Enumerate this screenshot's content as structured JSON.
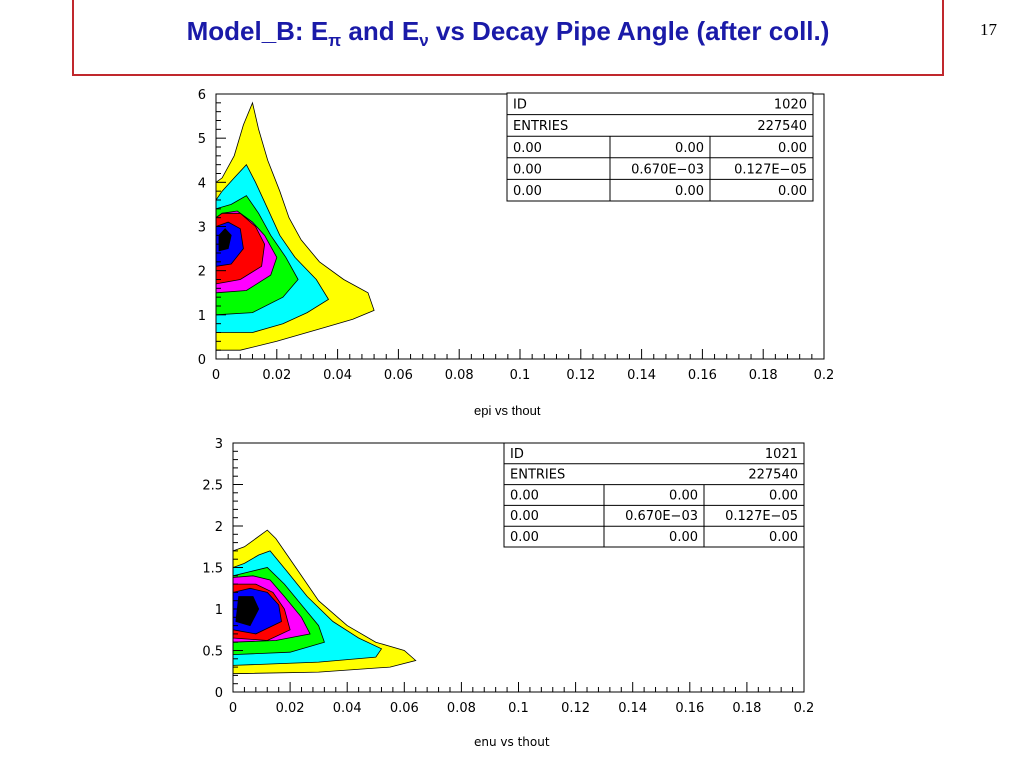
{
  "slide": {
    "title_main": "Model_B:  E",
    "title_sub1": "π",
    "title_mid": " and E",
    "title_sub2": "ν",
    "title_end": " vs Decay Pipe Angle (after coll.)",
    "page_number": "17"
  },
  "palette": {
    "yellow": "#ffff00",
    "cyan": "#00ffff",
    "green": "#00ff00",
    "magenta": "#ff00ff",
    "red": "#ff0000",
    "blue": "#0000ff",
    "black": "#000000"
  },
  "chart_data": [
    {
      "type": "heatmap",
      "title": "epi vs thout",
      "xlabel": "",
      "ylabel": "",
      "xlim": [
        0,
        0.2
      ],
      "ylim": [
        0,
        6
      ],
      "xticks": [
        "0",
        "0.02",
        "0.04",
        "0.06",
        "0.08",
        "0.1",
        "0.12",
        "0.14",
        "0.16",
        "0.18",
        "0.2"
      ],
      "yticks": [
        "0",
        "1",
        "2",
        "3",
        "4",
        "5",
        "6"
      ],
      "stats": [
        [
          "ID",
          "",
          "1020"
        ],
        [
          "ENTRIES",
          "",
          "227540"
        ],
        [
          "0.00",
          "0.00",
          "0.00"
        ],
        [
          "0.00",
          "0.670E−03",
          "0.127E−05"
        ],
        [
          "0.00",
          "0.00",
          "0.00"
        ]
      ],
      "contour_levels": [
        {
          "level": "yellow",
          "outline": [
            [
              0,
              0.2
            ],
            [
              0.008,
              0.2
            ],
            [
              0.02,
              0.4
            ],
            [
              0.035,
              0.7
            ],
            [
              0.045,
              0.9
            ],
            [
              0.052,
              1.1
            ],
            [
              0.05,
              1.5
            ],
            [
              0.042,
              1.8
            ],
            [
              0.034,
              2.2
            ],
            [
              0.028,
              2.7
            ],
            [
              0.024,
              3.2
            ],
            [
              0.021,
              3.8
            ],
            [
              0.017,
              4.5
            ],
            [
              0.014,
              5.2
            ],
            [
              0.012,
              5.8
            ],
            [
              0.009,
              5.3
            ],
            [
              0.006,
              4.6
            ],
            [
              0.002,
              4.1
            ],
            [
              0,
              4.0
            ]
          ]
        },
        {
          "level": "cyan",
          "outline": [
            [
              0,
              0.6
            ],
            [
              0.012,
              0.6
            ],
            [
              0.022,
              0.8
            ],
            [
              0.03,
              1.05
            ],
            [
              0.037,
              1.35
            ],
            [
              0.033,
              1.8
            ],
            [
              0.026,
              2.3
            ],
            [
              0.021,
              2.8
            ],
            [
              0.017,
              3.4
            ],
            [
              0.013,
              4.0
            ],
            [
              0.01,
              4.4
            ],
            [
              0.006,
              4.1
            ],
            [
              0.002,
              3.8
            ],
            [
              0,
              3.6
            ]
          ]
        },
        {
          "level": "green",
          "outline": [
            [
              0,
              1.0
            ],
            [
              0.012,
              1.05
            ],
            [
              0.022,
              1.4
            ],
            [
              0.027,
              1.8
            ],
            [
              0.023,
              2.3
            ],
            [
              0.018,
              2.8
            ],
            [
              0.014,
              3.3
            ],
            [
              0.01,
              3.7
            ],
            [
              0.005,
              3.5
            ],
            [
              0,
              3.4
            ]
          ]
        },
        {
          "level": "magenta",
          "outline": [
            [
              0,
              1.5
            ],
            [
              0.01,
              1.55
            ],
            [
              0.018,
              1.9
            ],
            [
              0.02,
              2.3
            ],
            [
              0.016,
              2.8
            ],
            [
              0.012,
              3.1
            ],
            [
              0.007,
              3.35
            ],
            [
              0.002,
              3.3
            ],
            [
              0,
              3.2
            ]
          ]
        },
        {
          "level": "red",
          "outline": [
            [
              0,
              1.7
            ],
            [
              0.008,
              1.8
            ],
            [
              0.015,
              2.1
            ],
            [
              0.016,
              2.6
            ],
            [
              0.013,
              3.0
            ],
            [
              0.008,
              3.3
            ],
            [
              0.002,
              3.3
            ],
            [
              0,
              3.2
            ]
          ]
        },
        {
          "level": "blue",
          "outline": [
            [
              0,
              2.1
            ],
            [
              0.005,
              2.15
            ],
            [
              0.009,
              2.5
            ],
            [
              0.008,
              2.95
            ],
            [
              0.004,
              3.1
            ],
            [
              0,
              3.0
            ]
          ]
        },
        {
          "level": "black",
          "outline": [
            [
              0.001,
              2.45
            ],
            [
              0.004,
              2.5
            ],
            [
              0.005,
              2.8
            ],
            [
              0.003,
              2.95
            ],
            [
              0.001,
              2.8
            ]
          ]
        }
      ]
    },
    {
      "type": "heatmap",
      "title": "enu vs thout",
      "xlabel": "",
      "ylabel": "",
      "xlim": [
        0,
        0.2
      ],
      "ylim": [
        0,
        3
      ],
      "xticks": [
        "0",
        "0.02",
        "0.04",
        "0.06",
        "0.08",
        "0.1",
        "0.12",
        "0.14",
        "0.16",
        "0.18",
        "0.2"
      ],
      "yticks": [
        "0",
        "0.5",
        "1",
        "1.5",
        "2",
        "2.5",
        "3"
      ],
      "stats": [
        [
          "ID",
          "",
          "1021"
        ],
        [
          "ENTRIES",
          "",
          "227540"
        ],
        [
          "0.00",
          "0.00",
          "0.00"
        ],
        [
          "0.00",
          "0.670E−03",
          "0.127E−05"
        ],
        [
          "0.00",
          "0.00",
          "0.00"
        ]
      ],
      "contour_levels": [
        {
          "level": "yellow",
          "outline": [
            [
              0,
              0.22
            ],
            [
              0.03,
              0.24
            ],
            [
              0.055,
              0.3
            ],
            [
              0.064,
              0.38
            ],
            [
              0.06,
              0.5
            ],
            [
              0.05,
              0.6
            ],
            [
              0.04,
              0.8
            ],
            [
              0.03,
              1.1
            ],
            [
              0.022,
              1.5
            ],
            [
              0.015,
              1.85
            ],
            [
              0.012,
              1.95
            ],
            [
              0.008,
              1.85
            ],
            [
              0.004,
              1.75
            ],
            [
              0,
              1.7
            ]
          ]
        },
        {
          "level": "cyan",
          "outline": [
            [
              0,
              0.32
            ],
            [
              0.03,
              0.36
            ],
            [
              0.05,
              0.42
            ],
            [
              0.052,
              0.52
            ],
            [
              0.044,
              0.65
            ],
            [
              0.035,
              0.85
            ],
            [
              0.026,
              1.15
            ],
            [
              0.019,
              1.45
            ],
            [
              0.013,
              1.7
            ],
            [
              0.009,
              1.65
            ],
            [
              0.004,
              1.55
            ],
            [
              0,
              1.5
            ]
          ]
        },
        {
          "level": "green",
          "outline": [
            [
              0,
              0.45
            ],
            [
              0.02,
              0.48
            ],
            [
              0.032,
              0.6
            ],
            [
              0.03,
              0.8
            ],
            [
              0.024,
              1.05
            ],
            [
              0.018,
              1.3
            ],
            [
              0.012,
              1.5
            ],
            [
              0.006,
              1.45
            ],
            [
              0,
              1.4
            ]
          ]
        },
        {
          "level": "magenta",
          "outline": [
            [
              0,
              0.6
            ],
            [
              0.015,
              0.62
            ],
            [
              0.027,
              0.7
            ],
            [
              0.024,
              0.9
            ],
            [
              0.018,
              1.15
            ],
            [
              0.013,
              1.35
            ],
            [
              0.007,
              1.4
            ],
            [
              0,
              1.38
            ]
          ]
        },
        {
          "level": "red",
          "outline": [
            [
              0,
              0.65
            ],
            [
              0.012,
              0.62
            ],
            [
              0.02,
              0.75
            ],
            [
              0.018,
              1.0
            ],
            [
              0.014,
              1.2
            ],
            [
              0.008,
              1.3
            ],
            [
              0,
              1.3
            ]
          ]
        },
        {
          "level": "blue",
          "outline": [
            [
              0,
              0.75
            ],
            [
              0.008,
              0.7
            ],
            [
              0.017,
              0.85
            ],
            [
              0.016,
              1.05
            ],
            [
              0.012,
              1.2
            ],
            [
              0.006,
              1.25
            ],
            [
              0,
              1.2
            ]
          ]
        },
        {
          "level": "black",
          "outline": [
            [
              0.001,
              0.85
            ],
            [
              0.006,
              0.8
            ],
            [
              0.009,
              1.0
            ],
            [
              0.007,
              1.15
            ],
            [
              0.002,
              1.15
            ]
          ]
        }
      ]
    }
  ]
}
